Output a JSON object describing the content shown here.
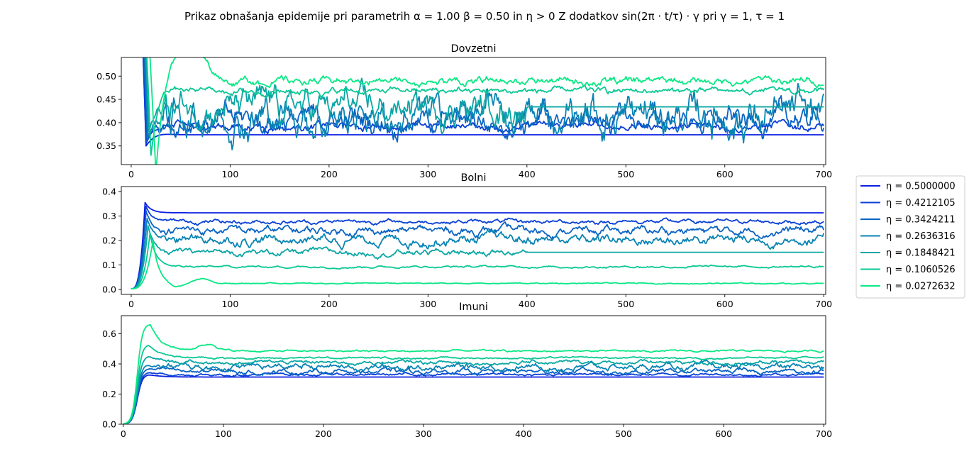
{
  "figure": {
    "suptitle": "Prikaz obnašanja epidemije pri parametrih α = 1.00 β = 0.50 in η > 0 Z dodatkov sin(2π · t/τ) · γ pri γ = 1, τ = 1"
  },
  "legend": {
    "placement": "right-center",
    "entries": [
      {
        "label": "η = 0.5000000",
        "color": "#0a1fe3"
      },
      {
        "label": "η = 0.4212105",
        "color": "#0a40d5"
      },
      {
        "label": "η = 0.3424211",
        "color": "#0a64c4"
      },
      {
        "label": "η = 0.2636316",
        "color": "#0a84b4"
      },
      {
        "label": "η = 0.1848421",
        "color": "#0aa6a4"
      },
      {
        "label": "η = 0.1060526",
        "color": "#0ac894"
      },
      {
        "label": "η = 0.0272632",
        "color": "#0ae884"
      }
    ]
  },
  "chart_data": [
    {
      "type": "line",
      "title": "Dovzetni",
      "xlim": [
        -10,
        702
      ],
      "ylim": [
        0.31,
        0.54
      ],
      "xticks": [
        "0",
        "100",
        "200",
        "300",
        "400",
        "500",
        "600",
        "700"
      ],
      "yticks": [
        "0.35",
        "0.40",
        "0.45",
        "0.50"
      ],
      "grid": false,
      "series": [
        {
          "name": "η = 0.5000000",
          "color": "#0a1fe3",
          "start": 1.0,
          "trough_t": 15,
          "trough": 0.35,
          "final": 0.374,
          "noise": 0.0,
          "flat_after": 25
        },
        {
          "name": "η = 0.4212105",
          "color": "#0a40d5",
          "start": 1.0,
          "trough_t": 15,
          "trough": 0.355,
          "final": 0.392,
          "noise": 0.004
        },
        {
          "name": "η = 0.3424211",
          "color": "#0a64c4",
          "start": 1.0,
          "trough_t": 16,
          "trough": 0.36,
          "final": 0.405,
          "noise": 0.012
        },
        {
          "name": "η = 0.2636316",
          "color": "#0a84b4",
          "start": 1.0,
          "trough_t": 17,
          "trough": 0.37,
          "final": 0.415,
          "noise": 0.018
        },
        {
          "name": "η = 0.1848421",
          "color": "#0aa6a4",
          "start": 1.0,
          "trough_t": 18,
          "trough": 0.38,
          "final": 0.434,
          "noise": 0.015,
          "flat_after": 400
        },
        {
          "name": "η = 0.1060526",
          "color": "#0ac894",
          "start": 1.0,
          "trough_t": 20,
          "trough": 0.33,
          "final": 0.468,
          "noise": 0.003
        },
        {
          "name": "η = 0.0272632",
          "color": "#0ae884",
          "start": 1.0,
          "trough_t": 25,
          "trough": 0.29,
          "final": 0.489,
          "noise": 0.004,
          "overshoot": 0.56,
          "overshoot_t": 60
        }
      ]
    },
    {
      "type": "line",
      "title": "Bolni",
      "xlim": [
        -10,
        702
      ],
      "ylim": [
        -0.02,
        0.42
      ],
      "xticks": [
        "0",
        "100",
        "200",
        "300",
        "400",
        "500",
        "600",
        "700"
      ],
      "yticks": [
        "0.0",
        "0.1",
        "0.2",
        "0.3",
        "0.4"
      ],
      "grid": false,
      "series": [
        {
          "name": "η = 0.5000000",
          "color": "#0a1fe3",
          "peak_t": 14,
          "peak": 0.355,
          "final": 0.313,
          "noise": 0.0
        },
        {
          "name": "η = 0.4212105",
          "color": "#0a40d5",
          "peak_t": 15,
          "peak": 0.34,
          "final": 0.277,
          "noise": 0.004
        },
        {
          "name": "η = 0.3424211",
          "color": "#0a64c4",
          "peak_t": 15,
          "peak": 0.32,
          "final": 0.24,
          "noise": 0.008
        },
        {
          "name": "η = 0.2636316",
          "color": "#0a84b4",
          "peak_t": 16,
          "peak": 0.29,
          "final": 0.205,
          "noise": 0.01
        },
        {
          "name": "η = 0.1848421",
          "color": "#0aa6a4",
          "peak_t": 17,
          "peak": 0.26,
          "final": 0.152,
          "noise": 0.006
        },
        {
          "name": "η = 0.1060526",
          "color": "#0ac894",
          "peak_t": 19,
          "peak": 0.23,
          "final": 0.093,
          "noise": 0.002
        },
        {
          "name": "η = 0.0272632",
          "color": "#0ae884",
          "peak_t": 22,
          "peak": 0.2,
          "final": 0.025,
          "noise": 0.001
        }
      ]
    },
    {
      "type": "line",
      "title": "Imuni",
      "xlim": [
        -2,
        702
      ],
      "ylim": [
        0.0,
        0.72
      ],
      "xticks": [
        "0",
        "100",
        "200",
        "300",
        "400",
        "500",
        "600",
        "700"
      ],
      "yticks": [
        "0.0",
        "0.2",
        "0.4",
        "0.6"
      ],
      "grid": false,
      "series": [
        {
          "name": "η = 0.5000000",
          "color": "#0a1fe3",
          "peak_t": 25,
          "peak": 0.33,
          "final": 0.313,
          "noise": 0.0
        },
        {
          "name": "η = 0.4212105",
          "color": "#0a40d5",
          "peak_t": 25,
          "peak": 0.345,
          "final": 0.33,
          "noise": 0.004
        },
        {
          "name": "η = 0.3424211",
          "color": "#0a64c4",
          "peak_t": 25,
          "peak": 0.37,
          "final": 0.35,
          "noise": 0.008
        },
        {
          "name": "η = 0.2636316",
          "color": "#0a84b4",
          "peak_t": 25,
          "peak": 0.4,
          "final": 0.38,
          "noise": 0.01
        },
        {
          "name": "η = 0.1848421",
          "color": "#0aa6a4",
          "peak_t": 25,
          "peak": 0.45,
          "final": 0.41,
          "noise": 0.006
        },
        {
          "name": "η = 0.1060526",
          "color": "#0ac894",
          "peak_t": 25,
          "peak": 0.53,
          "final": 0.44,
          "noise": 0.003
        },
        {
          "name": "η = 0.0272632",
          "color": "#0ae884",
          "peak_t": 27,
          "peak": 0.665,
          "final": 0.485,
          "noise": 0.003,
          "second_peak": 0.53,
          "second_peak_t": 85
        }
      ]
    }
  ]
}
